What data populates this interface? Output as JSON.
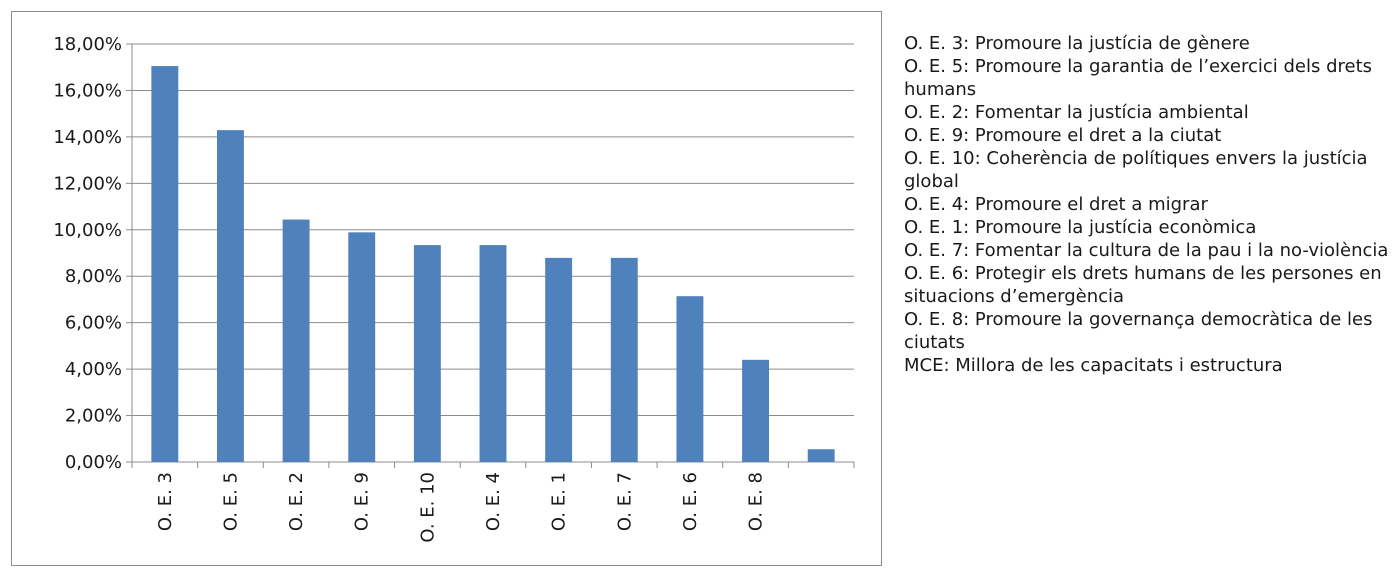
{
  "chart_data": {
    "type": "bar",
    "categories": [
      "O. E. 3",
      "O. E. 5",
      "O. E. 2",
      "O. E. 9",
      "O. E. 10",
      "O. E. 4",
      "O. E. 1",
      "O. E. 7",
      "O. E. 6",
      "O. E. 8",
      ""
    ],
    "values": [
      17.05,
      14.29,
      10.44,
      9.89,
      9.34,
      9.34,
      8.79,
      8.79,
      7.14,
      4.4,
      0.55
    ],
    "ylim": [
      0,
      18
    ],
    "yticks": [
      "0,00%",
      "2,00%",
      "4,00%",
      "6,00%",
      "8,00%",
      "10,00%",
      "12,00%",
      "14,00%",
      "16,00%",
      "18,00%"
    ],
    "grid": true,
    "bar_color": "#4f81bd",
    "title": "",
    "xlabel": "",
    "ylabel": ""
  },
  "legend": [
    "O. E. 3: Promoure la justícia de gènere",
    "O. E. 5: Promoure la garantia de l’exercici dels drets humans",
    "O. E. 2: Fomentar la justícia ambiental",
    "O. E. 9: Promoure el dret a la ciutat",
    "O. E. 10: Coherència de polítiques envers la justícia global",
    "O. E. 4: Promoure el dret a migrar",
    "O. E. 1: Promoure la justícia econòmica",
    "O. E. 7: Fomentar la cultura de la pau i la no-violència",
    "O. E. 6: Protegir els drets humans de les persones en situacions d’emergència",
    "O. E. 8: Promoure la governança democràtica de les ciutats",
    "MCE: Millora de les capacitats i estructura"
  ]
}
